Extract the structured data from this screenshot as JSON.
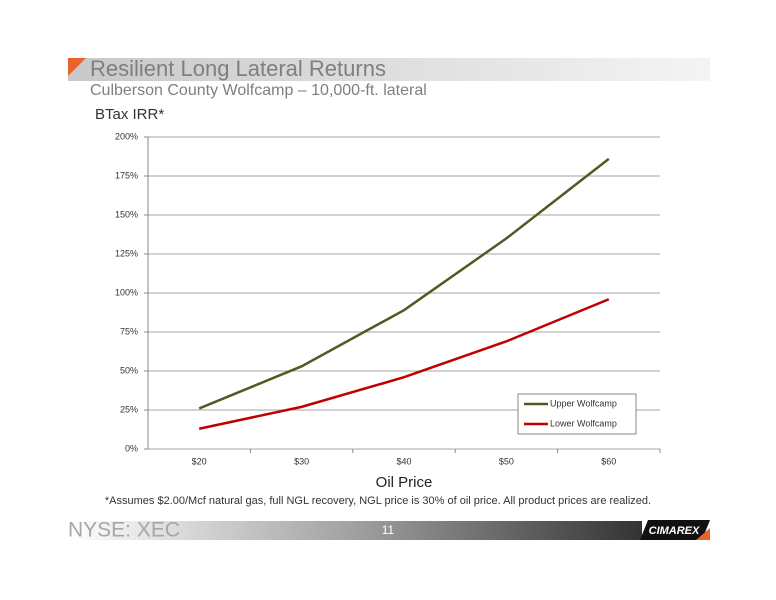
{
  "slide": {
    "title": "Resilient Long Lateral Returns",
    "subtitle": "Culberson County Wolfcamp – 10,000-ft. lateral",
    "footnote": "*Assumes $2.00/Mcf natural gas, full NGL recovery, NGL price is 30% of oil price. All product prices are realized.",
    "ticker": "NYSE: XEC",
    "page": "11",
    "logo": "CIMAREX"
  },
  "chart_data": {
    "type": "line",
    "y_label": "BTax IRR*",
    "x_label": "Oil Price",
    "categories": [
      "$20",
      "$30",
      "$40",
      "$50",
      "$60"
    ],
    "series": [
      {
        "name": "Upper Wolfcamp",
        "color": "#4b5d23",
        "values": [
          26,
          53,
          89,
          135,
          186
        ]
      },
      {
        "name": "Lower Wolfcamp",
        "color": "#c00000",
        "values": [
          13,
          27,
          46,
          69,
          96
        ]
      }
    ],
    "ylim": [
      0,
      200
    ],
    "yticks": [
      {
        "value": 0,
        "label": "0%"
      },
      {
        "value": 25,
        "label": "25%"
      },
      {
        "value": 50,
        "label": "50%"
      },
      {
        "value": 75,
        "label": "75%"
      },
      {
        "value": 100,
        "label": "100%"
      },
      {
        "value": 125,
        "label": "125%"
      },
      {
        "value": 150,
        "label": "150%"
      },
      {
        "value": 175,
        "label": "175%"
      },
      {
        "value": 200,
        "label": "200%"
      }
    ],
    "grid": true,
    "legend": "lower-right"
  }
}
